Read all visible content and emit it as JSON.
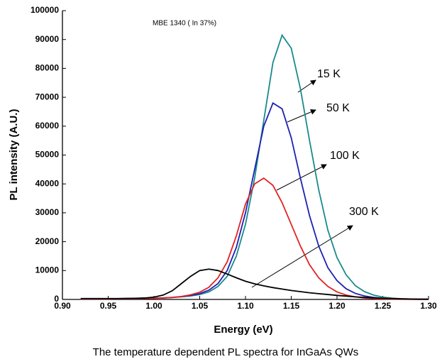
{
  "chart_data": {
    "type": "line",
    "annotation": "MBE 1340 ( In 37%)",
    "x_label": "Energy (eV)",
    "y_label": "PL intensity (A.U.)",
    "caption": "The temperature dependent PL spectra for InGaAs QWs",
    "x": [
      0.92,
      0.93,
      0.94,
      0.95,
      0.96,
      0.97,
      0.98,
      0.99,
      1.0,
      1.01,
      1.02,
      1.03,
      1.04,
      1.05,
      1.06,
      1.07,
      1.08,
      1.09,
      1.1,
      1.11,
      1.12,
      1.13,
      1.14,
      1.15,
      1.16,
      1.17,
      1.18,
      1.19,
      1.2,
      1.21,
      1.22,
      1.23,
      1.24,
      1.25,
      1.26,
      1.27,
      1.28,
      1.29,
      1.3
    ],
    "series": [
      {
        "name": "15 K",
        "color": "#1a8a8a",
        "values": [
          200,
          200,
          200,
          200,
          250,
          250,
          300,
          350,
          400,
          500,
          650,
          900,
          1200,
          1700,
          2600,
          4500,
          8000,
          15000,
          26000,
          42000,
          62000,
          82000,
          91500,
          87000,
          73000,
          55000,
          38000,
          24000,
          14500,
          8500,
          4800,
          2700,
          1500,
          800,
          450,
          250,
          150,
          100,
          50
        ]
      },
      {
        "name": "50 K",
        "color": "#1f1fb4",
        "values": [
          200,
          200,
          200,
          200,
          250,
          250,
          300,
          350,
          400,
          500,
          700,
          1000,
          1400,
          2000,
          3200,
          5500,
          10000,
          18000,
          30000,
          45000,
          60000,
          68000,
          66000,
          56000,
          42000,
          29000,
          18500,
          11000,
          6500,
          3700,
          2100,
          1200,
          700,
          400,
          250,
          150,
          100,
          50,
          50
        ]
      },
      {
        "name": "100 K",
        "color": "#e02424",
        "values": [
          200,
          200,
          200,
          200,
          250,
          250,
          300,
          350,
          400,
          500,
          700,
          1000,
          1600,
          2500,
          4200,
          7500,
          13000,
          22000,
          33000,
          40000,
          42000,
          39500,
          33500,
          26000,
          18500,
          12000,
          7500,
          4500,
          2600,
          1500,
          900,
          500,
          300,
          200,
          100,
          100,
          50,
          50,
          50
        ]
      },
      {
        "name": "300 K",
        "color": "#000000",
        "values": [
          300,
          300,
          300,
          300,
          300,
          350,
          400,
          500,
          800,
          1500,
          3000,
          5500,
          8000,
          10000,
          10500,
          10000,
          8800,
          7500,
          6300,
          5400,
          4700,
          4100,
          3600,
          3100,
          2700,
          2300,
          2000,
          1700,
          1400,
          1150,
          900,
          700,
          550,
          400,
          300,
          200,
          150,
          100,
          100
        ]
      }
    ],
    "xlim": [
      0.9,
      1.3
    ],
    "xticks": [
      {
        "value": 0.9,
        "label": "0.90"
      },
      0.95,
      {
        "value": 1.0,
        "label": "1.00"
      },
      1.05,
      {
        "value": 1.1,
        "label": "1.10"
      },
      1.15,
      {
        "value": 1.2,
        "label": "1.20"
      },
      1.25,
      {
        "value": 1.3,
        "label": "1.30"
      }
    ],
    "ylim": [
      0,
      100000
    ],
    "yticks": [
      0,
      10000,
      20000,
      30000,
      40000,
      50000,
      60000,
      70000,
      80000,
      90000,
      100000
    ]
  }
}
